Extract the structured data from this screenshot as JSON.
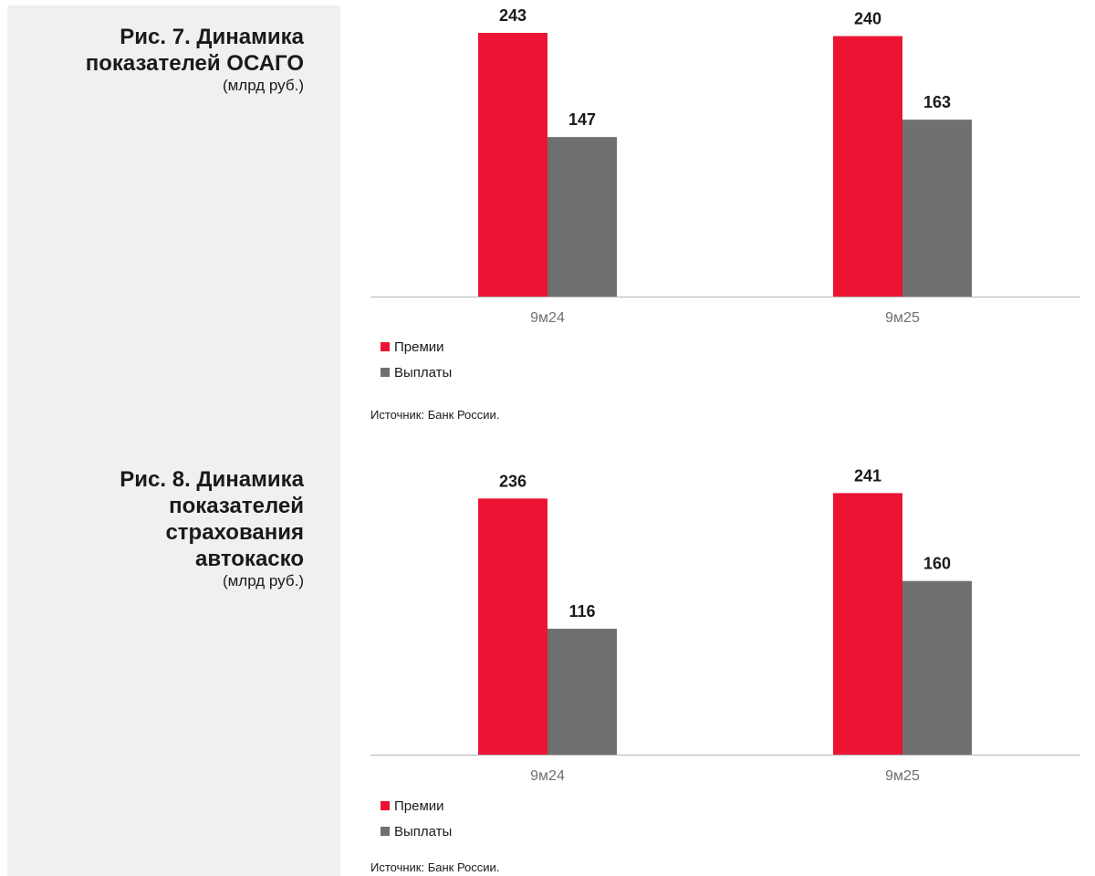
{
  "colors": {
    "premiums": "#ec1432",
    "payments": "#6f706f",
    "panel": "#f0f0f2",
    "axis": "#b5b5b5",
    "tick_label": "#707070"
  },
  "figures": [
    {
      "title_line1": "Рис. 7. Динамика",
      "title_line2": "показателей ОСАГО",
      "unit": "(млрд руб.)",
      "legend": [
        "Премии",
        "Выплаты"
      ],
      "source": "Источник: Банк России."
    },
    {
      "title_line1": "Рис. 8. Динамика",
      "title_line2": "показателей",
      "title_line3": "страхования",
      "title_line4": "автокаско",
      "unit": "(млрд руб.)",
      "legend": [
        "Премии",
        "Выплаты"
      ],
      "source": "Источник: Банк России."
    }
  ],
  "chart_data": [
    {
      "type": "bar",
      "title": "Рис. 7. Динамика показателей ОСАГО",
      "ylabel": "(млрд руб.)",
      "categories": [
        "9м24",
        "9м25"
      ],
      "series": [
        {
          "name": "Премии",
          "values": [
            243,
            240
          ]
        },
        {
          "name": "Выплаты",
          "values": [
            147,
            163
          ]
        }
      ],
      "ylim": [
        0,
        243
      ],
      "legend_position": "bottom-left",
      "grid": false
    },
    {
      "type": "bar",
      "title": "Рис. 8. Динамика показателей страхования автокаско",
      "ylabel": "(млрд руб.)",
      "categories": [
        "9м24",
        "9м25"
      ],
      "series": [
        {
          "name": "Премии",
          "values": [
            236,
            241
          ]
        },
        {
          "name": "Выплаты",
          "values": [
            116,
            160
          ]
        }
      ],
      "ylim": [
        0,
        243
      ],
      "legend_position": "bottom-left",
      "grid": false
    }
  ]
}
